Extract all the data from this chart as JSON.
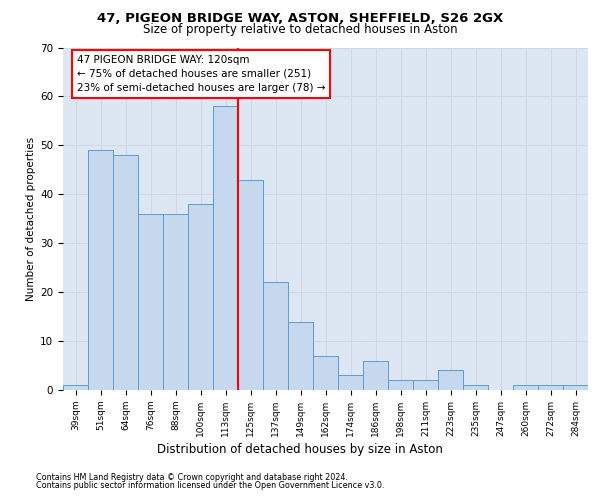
{
  "title_line1": "47, PIGEON BRIDGE WAY, ASTON, SHEFFIELD, S26 2GX",
  "title_line2": "Size of property relative to detached houses in Aston",
  "xlabel": "Distribution of detached houses by size in Aston",
  "ylabel": "Number of detached properties",
  "footer_line1": "Contains HM Land Registry data © Crown copyright and database right 2024.",
  "footer_line2": "Contains public sector information licensed under the Open Government Licence v3.0.",
  "annotation_line1": "47 PIGEON BRIDGE WAY: 120sqm",
  "annotation_line2": "← 75% of detached houses are smaller (251)",
  "annotation_line3": "23% of semi-detached houses are larger (78) →",
  "bar_labels": [
    "39sqm",
    "51sqm",
    "64sqm",
    "76sqm",
    "88sqm",
    "100sqm",
    "113sqm",
    "125sqm",
    "137sqm",
    "149sqm",
    "162sqm",
    "174sqm",
    "186sqm",
    "198sqm",
    "211sqm",
    "223sqm",
    "235sqm",
    "247sqm",
    "260sqm",
    "272sqm",
    "284sqm"
  ],
  "bar_values": [
    1,
    49,
    48,
    36,
    36,
    38,
    58,
    43,
    22,
    14,
    7,
    3,
    6,
    2,
    2,
    4,
    1,
    0,
    1,
    1,
    1
  ],
  "bar_color": "#c5d8ed",
  "bar_edge_color": "#5b9bd5",
  "vline_color": "red",
  "grid_color": "#d0d8e8",
  "bg_color": "#dde6f3",
  "ylim_max": 70,
  "yticks": [
    0,
    10,
    20,
    30,
    40,
    50,
    60,
    70
  ],
  "title1_fontsize": 9.5,
  "title2_fontsize": 8.5,
  "ylabel_fontsize": 7.5,
  "xlabel_fontsize": 8.5,
  "tick_fontsize": 6.5,
  "annotation_fontsize": 7.5,
  "footer_fontsize": 5.8
}
